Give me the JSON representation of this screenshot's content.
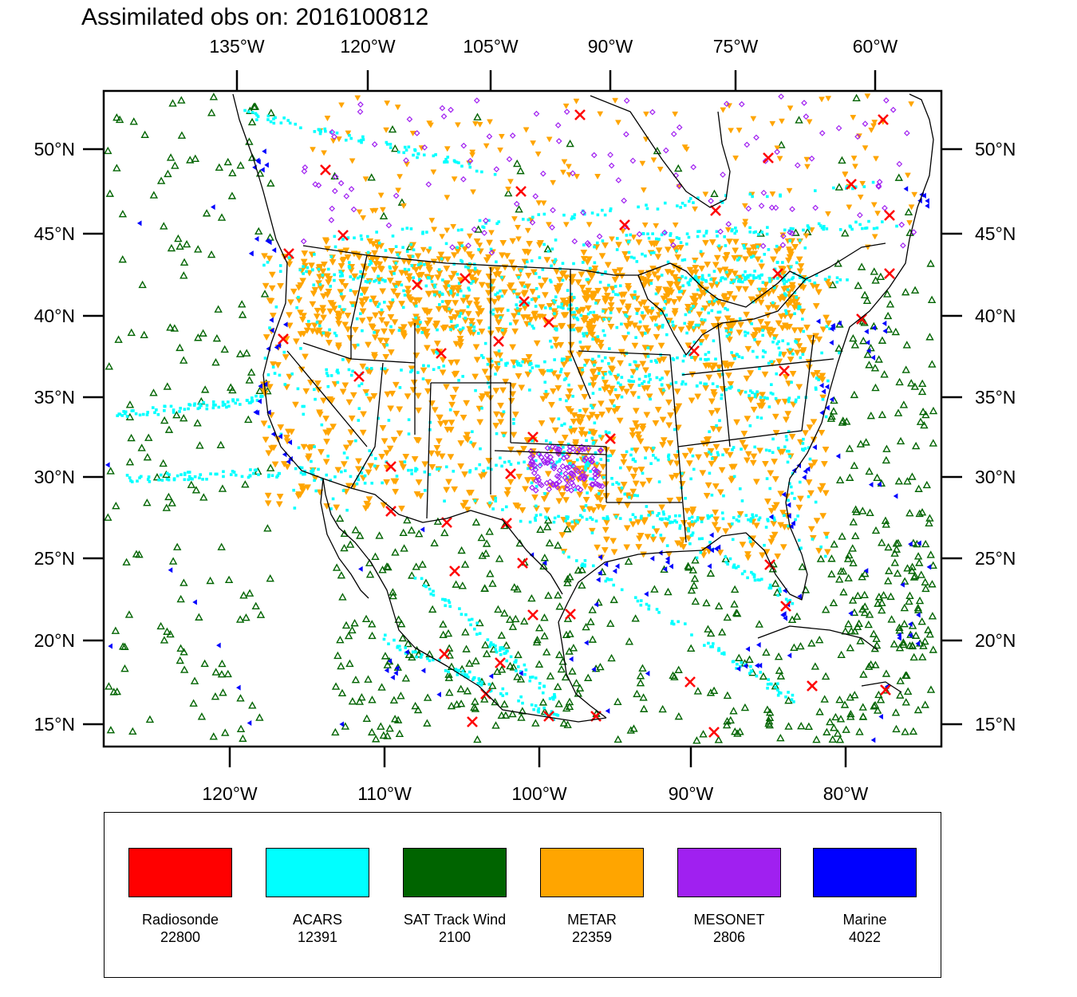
{
  "title": "Assimilated obs on: 2016100812",
  "map": {
    "projection": "lambert-conformal",
    "region": "North America (CONUS)",
    "top_lon_labels": [
      "135°W",
      "120°W",
      "105°W",
      "90°W",
      "75°W",
      "60°W"
    ],
    "bottom_lon_labels": [
      "120°W",
      "110°W",
      "100°W",
      "90°W",
      "80°W"
    ],
    "lat_labels": [
      "50°N",
      "45°N",
      "40°N",
      "35°N",
      "30°N",
      "25°N",
      "20°N",
      "15°N"
    ]
  },
  "legend": {
    "items": [
      {
        "name": "Radiosonde",
        "count": "22800",
        "color": "#ff0000",
        "marker": "x-cross"
      },
      {
        "name": "ACARS",
        "count": "12391",
        "color": "#00ffff",
        "marker": "square-dot"
      },
      {
        "name": "SAT Track Wind",
        "count": "2100",
        "color": "#006400",
        "marker": "triangle-up-outline"
      },
      {
        "name": "METAR",
        "count": "22359",
        "color": "#ffa500",
        "marker": "triangle-down"
      },
      {
        "name": "MESONET",
        "count": "2806",
        "color": "#a020f0",
        "marker": "diamond-outline"
      },
      {
        "name": "Marine",
        "count": "4022",
        "color": "#0000ff",
        "marker": "triangle-left"
      }
    ]
  }
}
